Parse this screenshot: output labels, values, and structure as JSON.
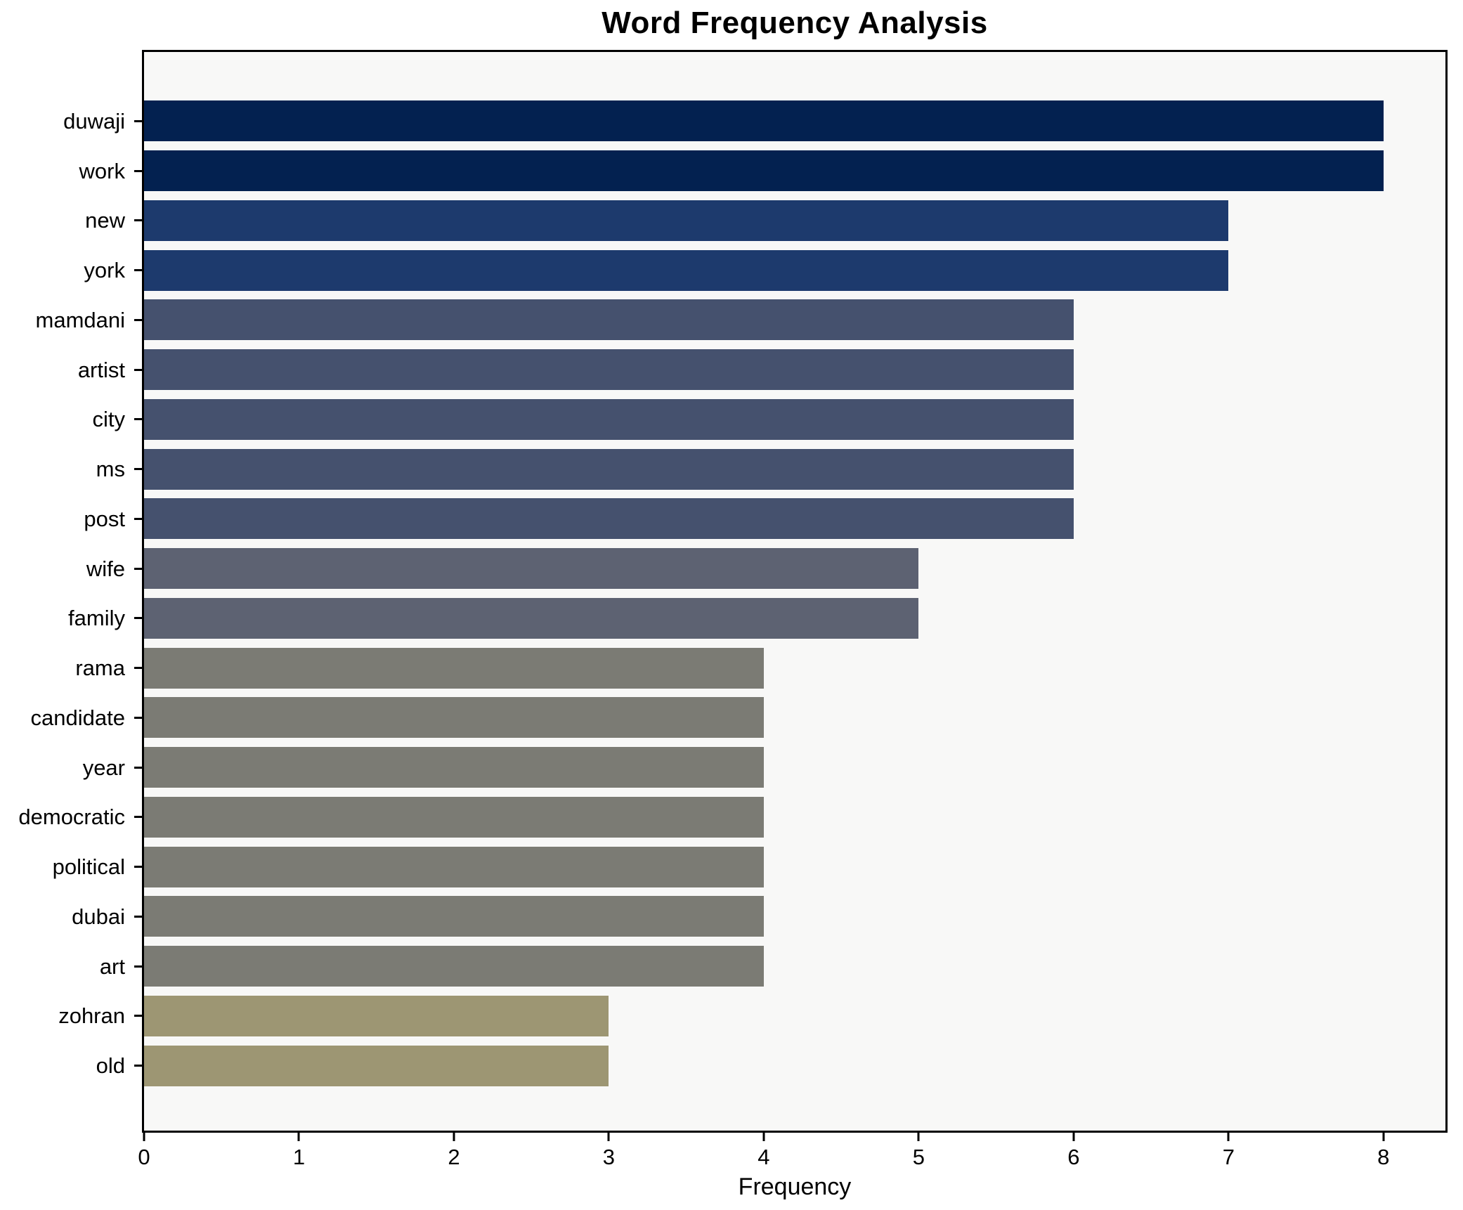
{
  "chart_data": {
    "type": "bar",
    "orientation": "horizontal",
    "title": "Word Frequency Analysis",
    "xlabel": "Frequency",
    "ylabel": "",
    "categories": [
      "duwaji",
      "work",
      "new",
      "york",
      "mamdani",
      "artist",
      "city",
      "ms",
      "post",
      "wife",
      "family",
      "rama",
      "candidate",
      "year",
      "democratic",
      "political",
      "dubai",
      "art",
      "zohran",
      "old"
    ],
    "values": [
      8,
      8,
      7,
      7,
      6,
      6,
      6,
      6,
      6,
      5,
      5,
      4,
      4,
      4,
      4,
      4,
      4,
      4,
      3,
      3
    ],
    "bar_colors": [
      "#032150",
      "#032150",
      "#1d3a6d",
      "#1d3a6d",
      "#45516e",
      "#45516e",
      "#45516e",
      "#45516e",
      "#45516e",
      "#5d6272",
      "#5d6272",
      "#7b7b74",
      "#7b7b74",
      "#7b7b74",
      "#7b7b74",
      "#7b7b74",
      "#7b7b74",
      "#7b7b74",
      "#9d9673",
      "#9d9673"
    ],
    "xlim": [
      0,
      8.4
    ],
    "x_ticks": [
      0,
      1,
      2,
      3,
      4,
      5,
      6,
      7,
      8
    ],
    "grid": false,
    "legend": false,
    "colors": {
      "value_8": "#032150",
      "value_7": "#1d3a6d",
      "value_6": "#45516e",
      "value_5": "#5d6272",
      "value_4": "#7b7b74",
      "value_3": "#9d9673",
      "plot_bg": "#f8f8f7",
      "figure_bg": "#ffffff",
      "axis": "#000000",
      "text": "#000000"
    }
  }
}
